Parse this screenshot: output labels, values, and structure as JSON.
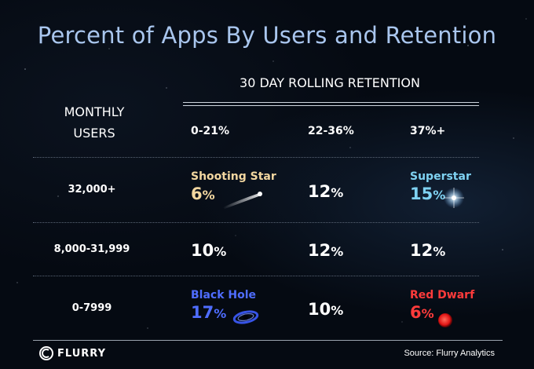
{
  "title": "Percent of Apps By Users and Retention",
  "footer": {
    "logo_text": "FLURRY",
    "source": "Source: Flurry Analytics"
  },
  "colors": {
    "title": "#a9c6ee",
    "shooting_star": "#f3d7a0",
    "superstar": "#7fd2f2",
    "black_hole": "#4f6dff",
    "red_dwarf": "#ff3b3b",
    "plain": "#ffffff"
  },
  "chart_data": {
    "type": "table",
    "title": "Percent of Apps By Users and Retention",
    "column_group_header": "30 DAY ROLLING RETENTION",
    "row_header": [
      "MONTHLY",
      "USERS"
    ],
    "columns": [
      "0-21%",
      "22-36%",
      "37%+"
    ],
    "rows": [
      {
        "label": "32,000+",
        "cells": [
          {
            "name": "Shooting Star",
            "value": "6",
            "unit": "%",
            "color": "#f3d7a0",
            "icon": "shooting-star-icon"
          },
          {
            "name": "",
            "value": "12",
            "unit": "%",
            "color": "#ffffff",
            "icon": ""
          },
          {
            "name": "Superstar",
            "value": "15",
            "unit": "%",
            "color": "#7fd2f2",
            "icon": "superstar-icon"
          }
        ]
      },
      {
        "label": "8,000-31,999",
        "cells": [
          {
            "name": "",
            "value": "10",
            "unit": "%",
            "color": "#ffffff",
            "icon": ""
          },
          {
            "name": "",
            "value": "12",
            "unit": "%",
            "color": "#ffffff",
            "icon": ""
          },
          {
            "name": "",
            "value": "12",
            "unit": "%",
            "color": "#ffffff",
            "icon": ""
          }
        ]
      },
      {
        "label": "0-7999",
        "cells": [
          {
            "name": "Black Hole",
            "value": "17",
            "unit": "%",
            "color": "#4f6dff",
            "icon": "black-hole-icon"
          },
          {
            "name": "",
            "value": "10",
            "unit": "%",
            "color": "#ffffff",
            "icon": ""
          },
          {
            "name": "Red Dwarf",
            "value": "6",
            "unit": "%",
            "color": "#ff3b3b",
            "icon": "red-dwarf-icon"
          }
        ]
      }
    ]
  }
}
